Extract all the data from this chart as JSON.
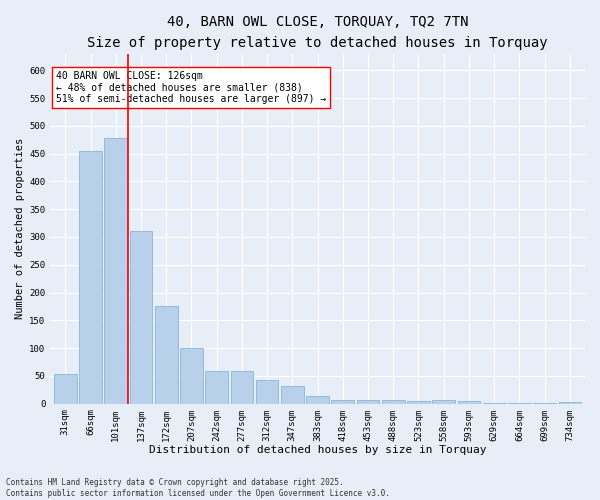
{
  "title": "40, BARN OWL CLOSE, TORQUAY, TQ2 7TN",
  "subtitle": "Size of property relative to detached houses in Torquay",
  "xlabel": "Distribution of detached houses by size in Torquay",
  "ylabel": "Number of detached properties",
  "categories": [
    "31sqm",
    "66sqm",
    "101sqm",
    "137sqm",
    "172sqm",
    "207sqm",
    "242sqm",
    "277sqm",
    "312sqm",
    "347sqm",
    "383sqm",
    "418sqm",
    "453sqm",
    "488sqm",
    "523sqm",
    "558sqm",
    "593sqm",
    "629sqm",
    "664sqm",
    "699sqm",
    "734sqm"
  ],
  "values": [
    54,
    455,
    478,
    311,
    175,
    100,
    58,
    58,
    42,
    31,
    13,
    7,
    7,
    7,
    5,
    6,
    5,
    1,
    1,
    1,
    3
  ],
  "bar_color": "#b8d0ea",
  "bar_edge_color": "#7aafd4",
  "vline_pos": 2.5,
  "vline_color": "red",
  "annotation_text": "40 BARN OWL CLOSE: 126sqm\n← 48% of detached houses are smaller (838)\n51% of semi-detached houses are larger (897) →",
  "annotation_box_color": "white",
  "annotation_box_edge_color": "red",
  "ylim": [
    0,
    630
  ],
  "yticks": [
    0,
    50,
    100,
    150,
    200,
    250,
    300,
    350,
    400,
    450,
    500,
    550,
    600
  ],
  "background_color": "#e8eef7",
  "grid_color": "white",
  "footer": "Contains HM Land Registry data © Crown copyright and database right 2025.\nContains public sector information licensed under the Open Government Licence v3.0.",
  "title_fontsize": 10,
  "subtitle_fontsize": 9,
  "xlabel_fontsize": 8,
  "ylabel_fontsize": 7.5,
  "tick_fontsize": 6.5,
  "annotation_fontsize": 7,
  "footer_fontsize": 5.5
}
